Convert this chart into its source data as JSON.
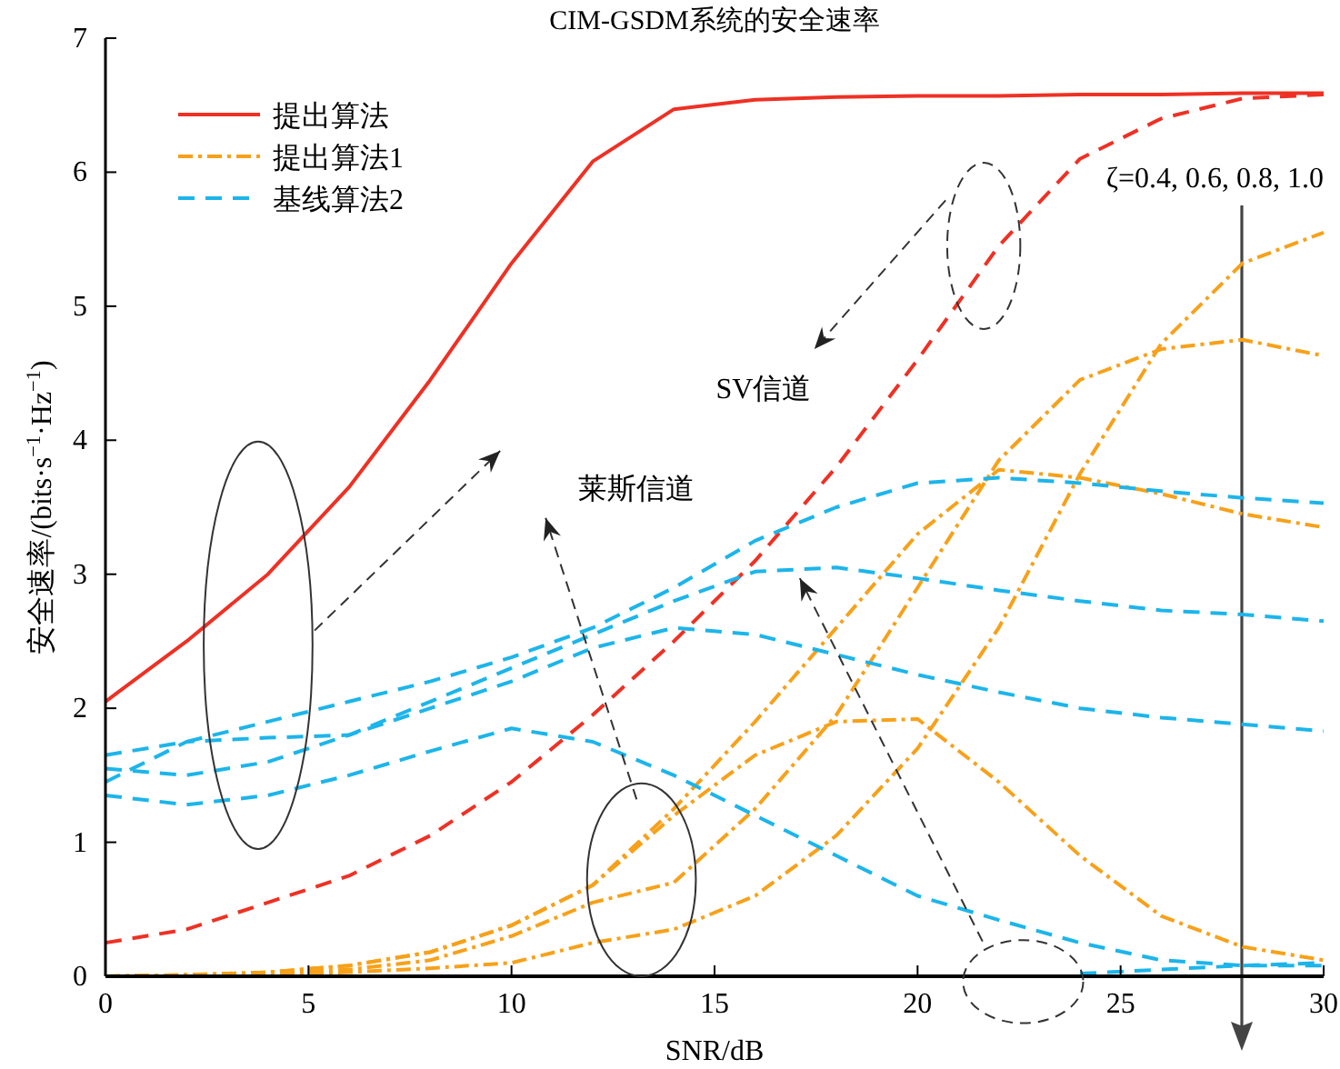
{
  "chart_data": {
    "type": "line",
    "title": "CIM-GSDM系统的安全速率",
    "xlabel": "SNR/dB",
    "ylabel": "安全速率/(bits·s$^{−1}$·Hz$^{−1}$)",
    "x": [
      0,
      2,
      4,
      6,
      8,
      10,
      12,
      14,
      16,
      18,
      20,
      22,
      24,
      26,
      28,
      30
    ],
    "xlim": [
      0,
      30
    ],
    "xticks": [
      0,
      5,
      10,
      15,
      20,
      25,
      30
    ],
    "ylim": [
      0,
      7
    ],
    "yticks": [
      0,
      1,
      2,
      3,
      4,
      5,
      6,
      7
    ],
    "legend": "top left",
    "grid": false,
    "marker": "none",
    "series": [
      {
        "name": "提出算法",
        "color": "#ee3124",
        "line_style": "solid",
        "values": [
          2.05,
          2.5,
          3.0,
          3.65,
          4.45,
          5.32,
          6.08,
          6.47,
          6.54,
          6.56,
          6.57,
          6.57,
          6.58,
          6.58,
          6.59,
          6.59
        ]
      },
      {
        "color": "#ee3124",
        "line_style": "dashed",
        "values": [
          0.25,
          0.35,
          0.55,
          0.75,
          1.05,
          1.45,
          1.95,
          2.5,
          3.1,
          3.8,
          4.6,
          5.45,
          6.1,
          6.4,
          6.55,
          6.58
        ]
      },
      {
        "name": "提出算法1",
        "color": "#f7a11a",
        "line_style": "dashdot",
        "values": [
          0,
          0.01,
          0.03,
          0.08,
          0.18,
          0.38,
          0.68,
          1.2,
          1.65,
          1.9,
          1.92,
          1.45,
          0.9,
          0.45,
          0.22,
          0.12
        ]
      },
      {
        "color": "#f7a11a",
        "line_style": "dashdot",
        "values": [
          0,
          0.01,
          0.03,
          0.08,
          0.18,
          0.38,
          0.68,
          1.25,
          1.9,
          2.6,
          3.3,
          3.78,
          3.72,
          3.6,
          3.45,
          3.35
        ]
      },
      {
        "color": "#f7a11a",
        "line_style": "dashdot",
        "values": [
          0,
          0.01,
          0.02,
          0.05,
          0.12,
          0.3,
          0.55,
          0.7,
          1.25,
          1.95,
          2.9,
          3.85,
          4.45,
          4.68,
          4.75,
          4.63
        ]
      },
      {
        "color": "#f7a11a",
        "line_style": "dashdot",
        "values": [
          0,
          0,
          0.01,
          0.03,
          0.06,
          0.1,
          0.25,
          0.35,
          0.6,
          1.05,
          1.7,
          2.6,
          3.75,
          4.72,
          5.32,
          5.55
        ]
      },
      {
        "name": "基线算法2",
        "color": "#1cb5ea",
        "line_style": "dashed",
        "values": [
          1.65,
          1.75,
          1.9,
          2.05,
          2.2,
          2.38,
          2.6,
          2.9,
          3.25,
          3.5,
          3.68,
          3.72,
          3.68,
          3.62,
          3.57,
          3.53
        ]
      },
      {
        "color": "#1cb5ea",
        "line_style": "dashed",
        "values": [
          1.55,
          1.5,
          1.6,
          1.8,
          2.05,
          2.3,
          2.55,
          2.8,
          3.02,
          3.05,
          2.97,
          2.88,
          2.8,
          2.73,
          2.7,
          2.65
        ]
      },
      {
        "color": "#1cb5ea",
        "line_style": "dashed",
        "values": [
          1.45,
          1.75,
          1.78,
          1.8,
          2.0,
          2.2,
          2.45,
          2.6,
          2.55,
          2.4,
          2.25,
          2.12,
          2.0,
          1.93,
          1.88,
          1.83
        ]
      },
      {
        "color": "#1cb5ea",
        "line_style": "dashed",
        "values": [
          1.35,
          1.28,
          1.35,
          1.5,
          1.68,
          1.85,
          1.75,
          1.5,
          1.2,
          0.9,
          0.6,
          0.42,
          0.25,
          0.12,
          0.08,
          0.08
        ]
      },
      {
        "color": "#1cb5ea",
        "line_style": "dashed",
        "values": [
          null,
          null,
          null,
          null,
          null,
          null,
          null,
          null,
          null,
          null,
          null,
          null,
          0.02,
          0.05,
          0.08,
          0.1
        ]
      }
    ],
    "annotations": [
      "莱斯信道",
      "SV信道",
      "ζ=0.4, 0.6, 0.8, 1.0"
    ]
  }
}
